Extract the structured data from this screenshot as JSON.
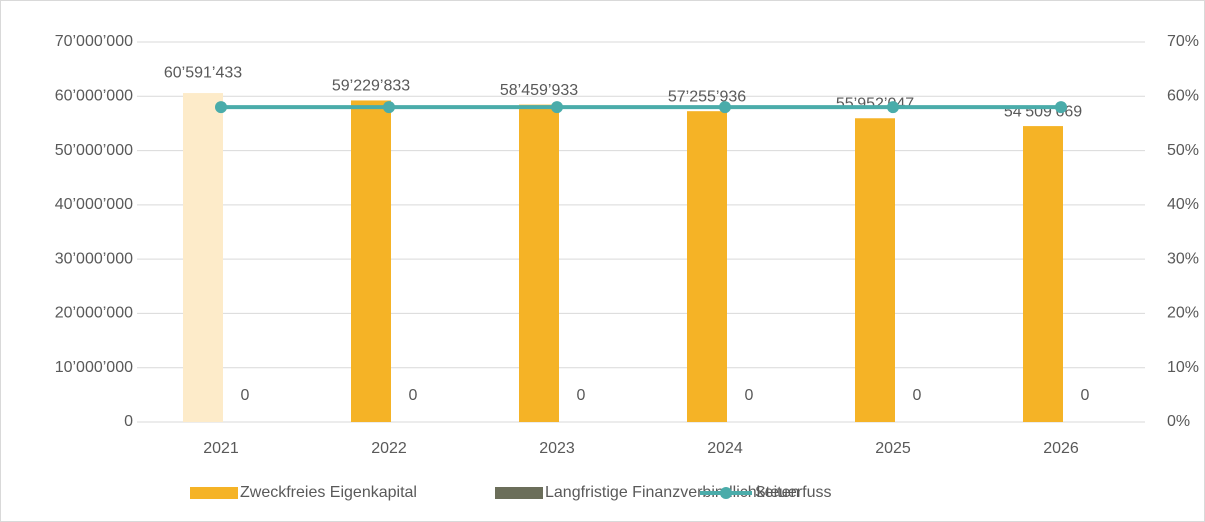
{
  "chart_data": {
    "type": "bar",
    "categories": [
      "2021",
      "2022",
      "2023",
      "2024",
      "2025",
      "2026"
    ],
    "series": [
      {
        "name": "Zweckfreies Eigenkapital",
        "color": "#f5b326",
        "colors": [
          "#fdebc9",
          "#f5b326",
          "#f5b326",
          "#f5b326",
          "#f5b326",
          "#f5b326"
        ],
        "values": [
          60591433,
          59229833,
          58459933,
          57255936,
          55952047,
          54509669
        ],
        "value_labels": [
          "60’591’433",
          "59’229’833",
          "58’459’933",
          "57’255’936",
          "55’952’047",
          "54’509’669"
        ]
      },
      {
        "name": "Langfristige Finanzverbindlichkeiten",
        "color": "#6b6e5a",
        "values": [
          0,
          0,
          0,
          0,
          0,
          0
        ]
      },
      {
        "name": "Steuerfuss",
        "color": "#4aacaa",
        "type": "line",
        "axis": "y2",
        "values": [
          58,
          58,
          58,
          58,
          58,
          58
        ]
      }
    ],
    "ylim": [
      0,
      70000000
    ],
    "yticks": [
      0,
      {
        "value": 10000000,
        "label": "10’000’000"
      },
      {
        "value": 20000000,
        "label": "20’000’000"
      },
      {
        "value": 30000000,
        "label": "30’000’000"
      },
      {
        "value": 40000000,
        "label": "40’000’000"
      },
      {
        "value": 50000000,
        "label": "50’000’000"
      },
      {
        "value": 60000000,
        "label": "60’000’000"
      },
      {
        "value": 70000000,
        "label": "70’000’000"
      }
    ],
    "y2lim": [
      0,
      70
    ],
    "y2ticks": [
      {
        "value": 0,
        "label": "0%"
      },
      {
        "value": 10,
        "label": "10%"
      },
      {
        "value": 20,
        "label": "20%"
      },
      {
        "value": 30,
        "label": "30%"
      },
      {
        "value": 40,
        "label": "40%"
      },
      {
        "value": 50,
        "label": "50%"
      },
      {
        "value": 60,
        "label": "60%"
      },
      {
        "value": 70,
        "label": "70%"
      }
    ],
    "grid": true,
    "legend": "bottom"
  }
}
